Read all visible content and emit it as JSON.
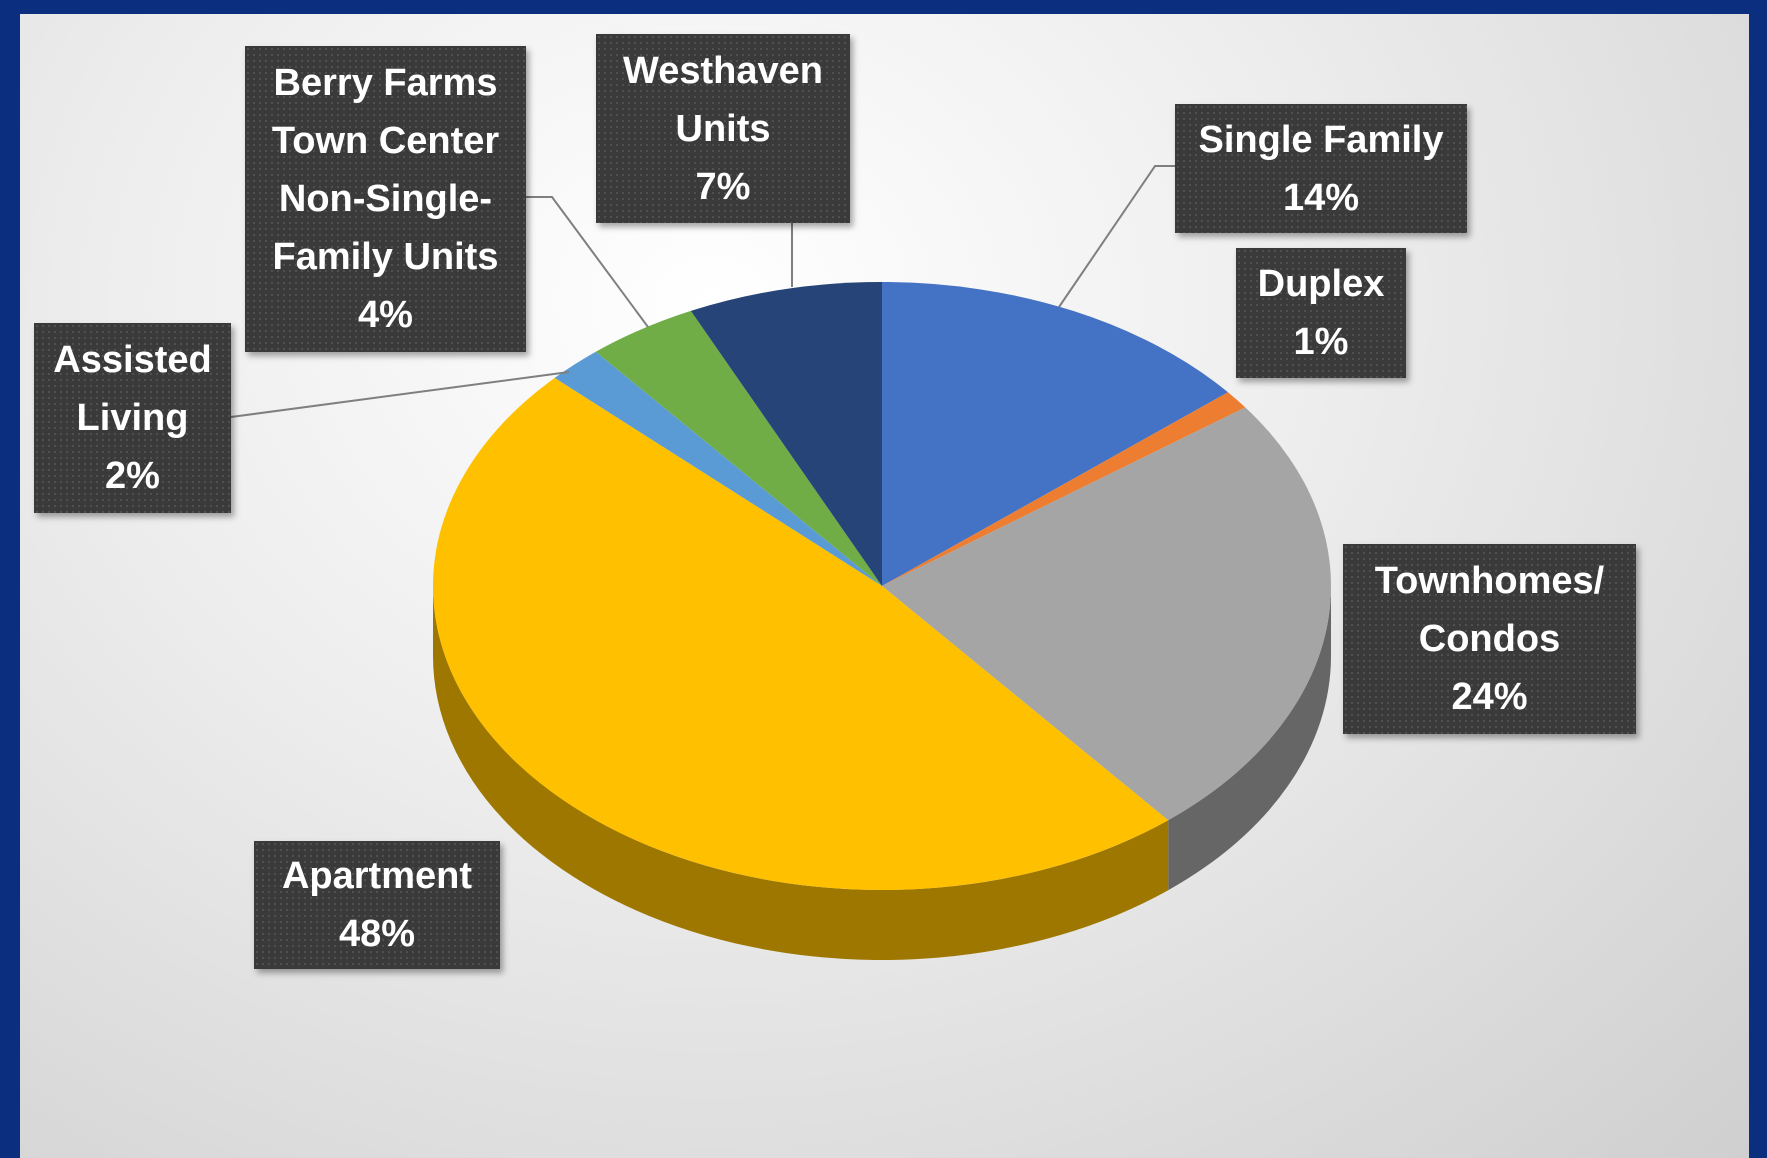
{
  "chart_data": {
    "type": "pie",
    "categories": [
      "Single Family",
      "Duplex",
      "Townhomes/ Condos",
      "Apartment",
      "Assisted Living",
      "Berry Farms Town Center Non-Single-Family Units",
      "Westhaven Units"
    ],
    "values": [
      14,
      1,
      24,
      48,
      2,
      4,
      7
    ],
    "value_labels": [
      "14%",
      "1%",
      "24%",
      "48%",
      "2%",
      "4%",
      "7%"
    ],
    "colors": [
      "#4472c4",
      "#ed7d31",
      "#a5a5a5",
      "#ffc000",
      "#5b9bd5",
      "#70ad47",
      "#264478"
    ]
  }
}
